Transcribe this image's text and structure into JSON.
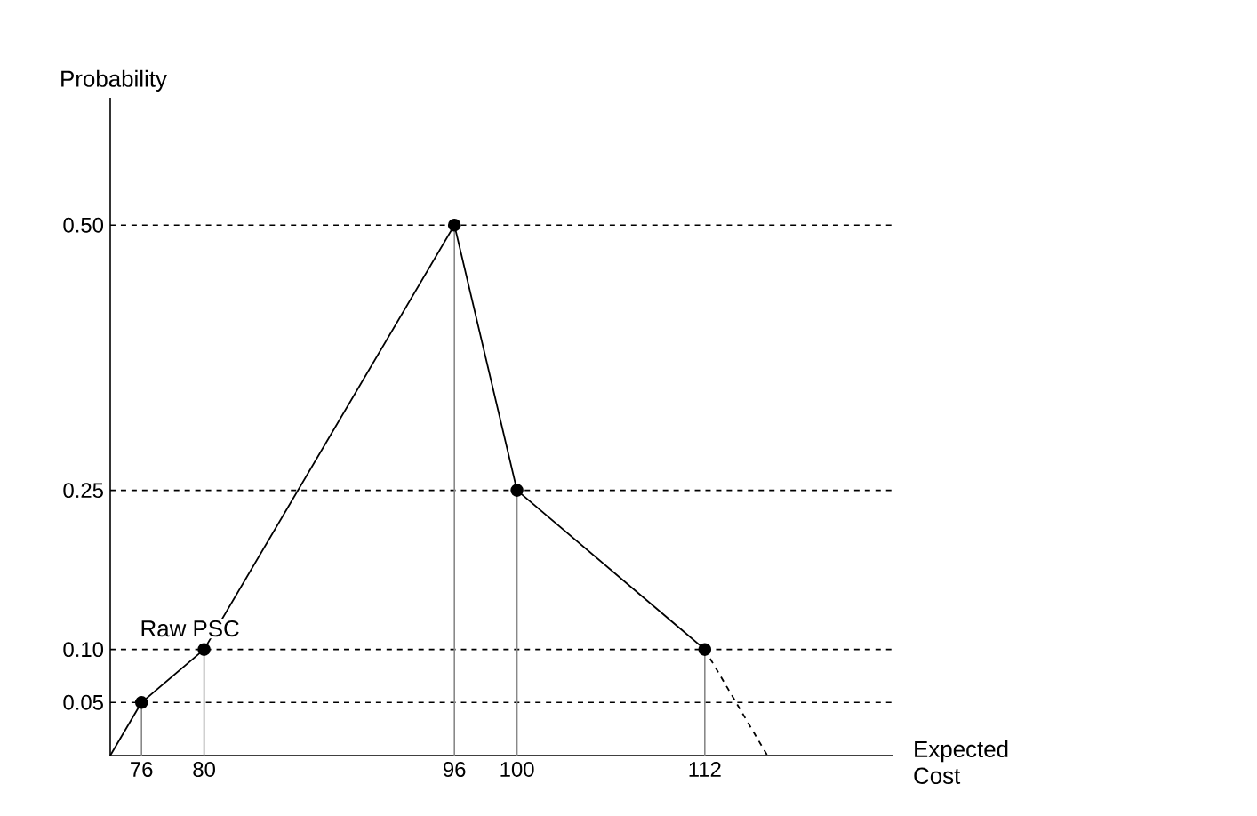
{
  "chart_data": {
    "type": "line",
    "xlabel": "Expected Cost",
    "ylabel": "Probability",
    "xlim": [
      74,
      124
    ],
    "ylim": [
      0,
      0.62
    ],
    "xticks": [
      76,
      80,
      96,
      100,
      112
    ],
    "yticks": [
      {
        "value": 0.05,
        "label": "0.05"
      },
      {
        "value": 0.1,
        "label": "0.10"
      },
      {
        "value": 0.25,
        "label": "0.25"
      },
      {
        "value": 0.5,
        "label": "0.50"
      }
    ],
    "series": [
      {
        "color": "#000000",
        "x": [
          74,
          76
        ],
        "values": [
          0,
          0.05
        ],
        "line_style": "solid"
      },
      {
        "name": "Raw PSC",
        "color": "#000000",
        "x": [
          76,
          80,
          96,
          100,
          112
        ],
        "values": [
          0.05,
          0.1,
          0.5,
          0.25,
          0.1
        ],
        "marker": "circle",
        "line_style": "solid"
      },
      {
        "color": "#000000",
        "x": [
          112,
          116
        ],
        "values": [
          0.1,
          0
        ],
        "marker": "none",
        "line_style": "dashed"
      }
    ],
    "ref_lines": [
      {
        "axis": "y",
        "value": 0.05,
        "color": "#000000",
        "line_style": "dashed"
      },
      {
        "axis": "y",
        "value": 0.1,
        "color": "#000000",
        "line_style": "dashed"
      },
      {
        "axis": "y",
        "value": 0.25,
        "color": "#000000",
        "line_style": "dashed"
      },
      {
        "axis": "y",
        "value": 0.5,
        "color": "#000000",
        "line_style": "dashed"
      },
      {
        "axis": "x",
        "value": 76,
        "color": "#888888",
        "line_style": "solid"
      },
      {
        "axis": "x",
        "value": 80,
        "color": "#888888",
        "line_style": "solid"
      },
      {
        "axis": "x",
        "value": 96,
        "color": "#888888",
        "line_style": "solid"
      },
      {
        "axis": "x",
        "value": 100,
        "color": "#888888",
        "line_style": "solid"
      },
      {
        "axis": "x",
        "value": 112,
        "color": "#888888",
        "line_style": "solid"
      }
    ],
    "grid": false,
    "legend": false
  }
}
